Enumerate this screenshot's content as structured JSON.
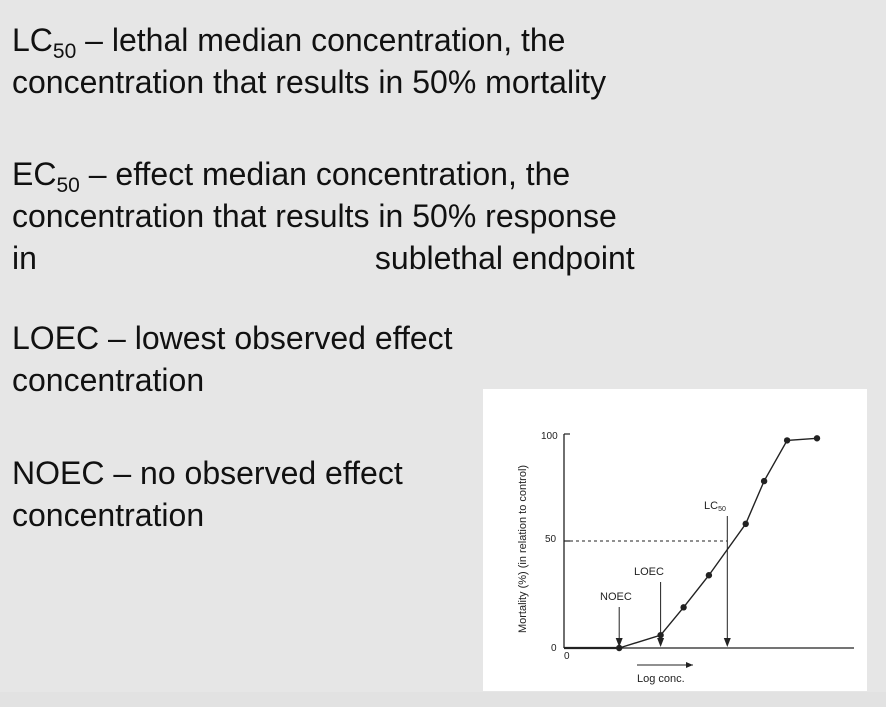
{
  "definitions": {
    "lc50": {
      "abbr": "LC",
      "sub": "50",
      "text": " – lethal median concentration, the",
      "line2": "concentration that results in 50% mortality"
    },
    "ec50": {
      "abbr": "EC",
      "sub": "50",
      "text": " – effect median concentration, the",
      "line2": "concentration that results in 50% response",
      "line3a": "in",
      "line3b": "sublethal endpoint"
    },
    "loec": {
      "line1": "LOEC – lowest observed effect",
      "line2": "concentration"
    },
    "noec": {
      "line1": "NOEC – no observed effect",
      "line2": "concentration"
    }
  },
  "figure": {
    "ylabel": "Mortality (%) (in relation to control)",
    "xlabel": "Log conc.",
    "y_ticks": [
      "100",
      "50",
      "0"
    ],
    "x_origin": "0",
    "annotations": {
      "noec": "NOEC",
      "loec": "LOEC",
      "lc_abbr": "LC",
      "lc_sub": "50"
    }
  },
  "chart_data": {
    "type": "line",
    "ylim": [
      0,
      100
    ],
    "y_ticks": [
      0,
      50,
      100
    ],
    "xlabel": "Log conc.",
    "ylabel": "Mortality (%) (in relation to control)",
    "series": [
      {
        "x": [
          0.24,
          0.42,
          0.52,
          0.63,
          0.79,
          0.87,
          0.97,
          1.1
        ],
        "y": [
          0,
          6,
          19,
          34,
          58,
          78,
          97,
          98
        ]
      }
    ],
    "reference_line_y": 50,
    "markers": [
      {
        "label": "NOEC",
        "x": 0.24
      },
      {
        "label": "LOEC",
        "x": 0.42
      },
      {
        "label": "LC50",
        "x": 0.71
      }
    ]
  }
}
